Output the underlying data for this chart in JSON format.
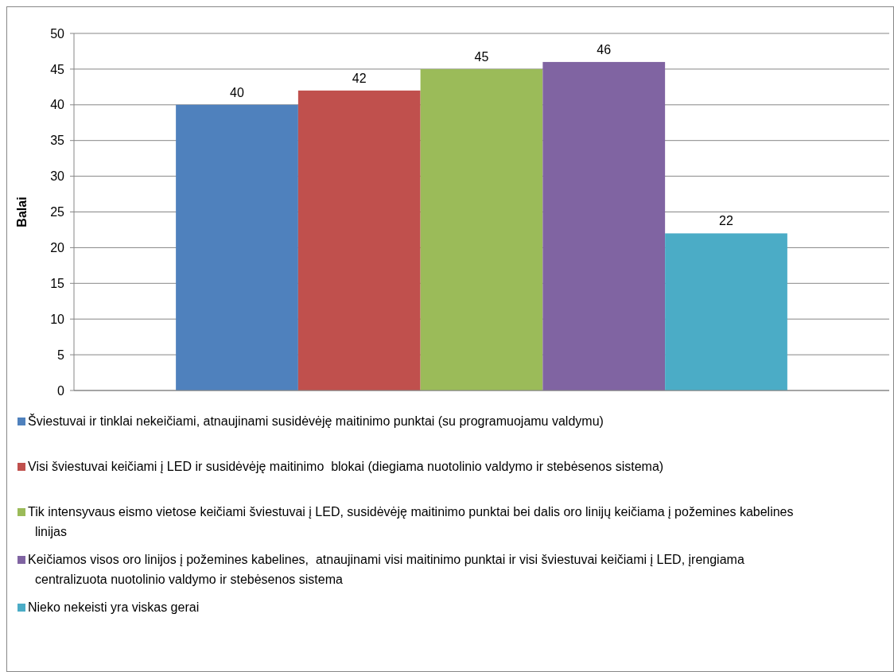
{
  "chart_data": {
    "type": "bar",
    "ylabel": "Balai",
    "categories": [
      null
    ],
    "series": [
      {
        "name": "Šviestuvai ir tinklai nekeičiami, atnaujinami susidėvėję maitinimo punktai (su programuojamu valdymu)",
        "color": "#4f81bd",
        "values": [
          40
        ]
      },
      {
        "name": "Visi šviestuvai keičiami į LED ir susidėvėję maitinimo  blokai (diegiama nuotolinio valdymo ir stebėsenos sistema)",
        "color": "#c0504d",
        "values": [
          42
        ]
      },
      {
        "name": "Tik intensyvaus eismo vietose keičiami šviestuvai į LED, susidėvėję maitinimo punktai bei dalis oro linijų keičiama į požemines kabelines linijas",
        "color": "#9bbb59",
        "values": [
          45
        ]
      },
      {
        "name": "Keičiamos visos oro linijos į požemines kabelines,  atnaujinami visi maitinimo punktai ir visi šviestuvai keičiami į LED, įrengiama centralizuota nuotolinio valdymo ir stebėsenos sistema",
        "color": "#8064a2",
        "values": [
          46
        ]
      },
      {
        "name": "Nieko nekeisti yra viskas gerai",
        "color": "#4bacc6",
        "values": [
          22
        ]
      }
    ],
    "ylim": [
      0,
      50
    ],
    "yticks": [
      0,
      5,
      10,
      15,
      20,
      25,
      30,
      35,
      40,
      45,
      50
    ],
    "grid": "y",
    "legend": "bottom",
    "data_labels": true
  }
}
